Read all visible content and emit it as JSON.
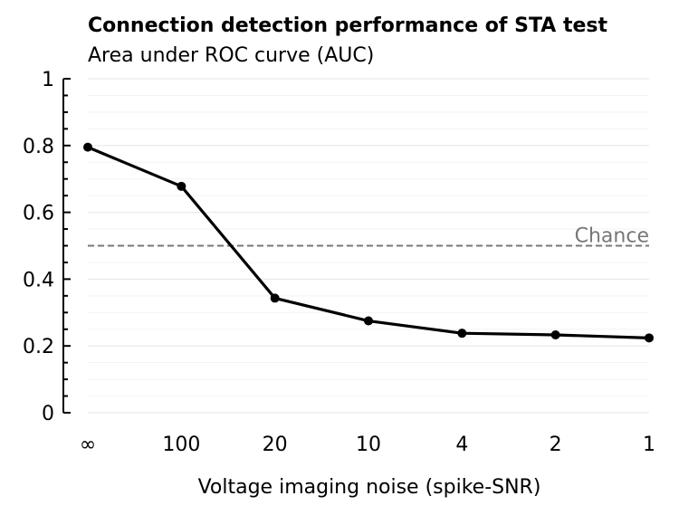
{
  "chart_data": {
    "type": "line",
    "title": "Connection detection performance of STA test",
    "subtitle": "Area under ROC curve (AUC)",
    "xlabel": "Voltage imaging noise (spike-SNR)",
    "ylabel": "",
    "categories": [
      "∞",
      "100",
      "20",
      "10",
      "4",
      "2",
      "1"
    ],
    "series": [
      {
        "values": [
          0.795,
          0.678,
          0.343,
          0.275,
          0.238,
          0.233,
          0.224
        ]
      }
    ],
    "ylim": [
      0,
      1
    ],
    "yticks": [
      0,
      0.2,
      0.4,
      0.6,
      0.8,
      1
    ],
    "ytick_labels": [
      "0",
      "0.2",
      "0.4",
      "0.6",
      "0.8",
      "1"
    ],
    "reference_line": {
      "value": 0.5,
      "label": "Chance",
      "style": "dashed",
      "color": "#777777"
    },
    "grid": true,
    "line_color": "#000000"
  }
}
